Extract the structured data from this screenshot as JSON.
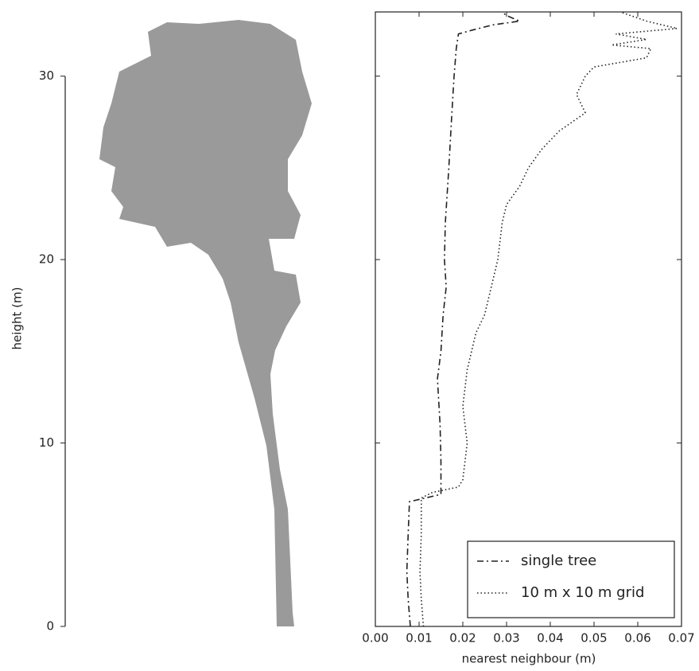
{
  "chart_data": {
    "type": "line",
    "xlabel": "nearest neighbour (m)",
    "ylabel": "height (m)",
    "xlim": [
      0,
      0.07
    ],
    "ylim": [
      0,
      33.5
    ],
    "xticks": [
      {
        "value": 0,
        "label": "0.00"
      },
      {
        "value": 0.01,
        "label": "0.01"
      },
      {
        "value": 0.02,
        "label": "0.02"
      },
      {
        "value": 0.03,
        "label": "0.03"
      },
      {
        "value": 0.04,
        "label": "0.04"
      },
      {
        "value": 0.05,
        "label": "0.05"
      },
      {
        "value": 0.06,
        "label": "0.06"
      },
      {
        "value": 0.07,
        "label": "0.07"
      }
    ],
    "yticks": [
      0,
      10,
      20,
      30
    ],
    "legend": "lower right",
    "series": [
      {
        "name": "single tree",
        "color": "#222222",
        "style": "dashdot",
        "x": [
          0.008,
          0.0075,
          0.0072,
          0.0075,
          0.0078,
          0.015,
          0.015,
          0.0148,
          0.0142,
          0.015,
          0.0155,
          0.0162,
          0.0158,
          0.016,
          0.0168,
          0.0175,
          0.018,
          0.0185,
          0.019,
          0.022,
          0.027,
          0.033,
          0.03,
          0.029
        ],
        "y": [
          0,
          1.5,
          3,
          5,
          6.8,
          7.2,
          9,
          11,
          13.5,
          15,
          17,
          18.5,
          20,
          22,
          25,
          28,
          30,
          31.5,
          32.3,
          32.5,
          32.8,
          33.0,
          33.3,
          33.5
        ]
      },
      {
        "name": "10 m x 10 m grid",
        "color": "#222222",
        "style": "dotted",
        "x": [
          0.011,
          0.0105,
          0.0102,
          0.0105,
          0.0105,
          0.013,
          0.019,
          0.02,
          0.021,
          0.02,
          0.021,
          0.023,
          0.025,
          0.027,
          0.028,
          0.029,
          0.03,
          0.033,
          0.035,
          0.038,
          0.042,
          0.048,
          0.046,
          0.048,
          0.05,
          0.062,
          0.063,
          0.054,
          0.062,
          0.055,
          0.069,
          0.062,
          0.056
        ],
        "y": [
          0,
          1.5,
          3,
          5,
          7,
          7.3,
          7.6,
          8,
          10,
          12,
          14,
          16,
          17,
          19,
          20,
          22,
          23,
          24,
          25,
          26,
          27,
          28,
          29,
          30,
          30.5,
          31,
          31.5,
          31.7,
          32,
          32.3,
          32.6,
          33,
          33.5
        ]
      }
    ]
  }
}
